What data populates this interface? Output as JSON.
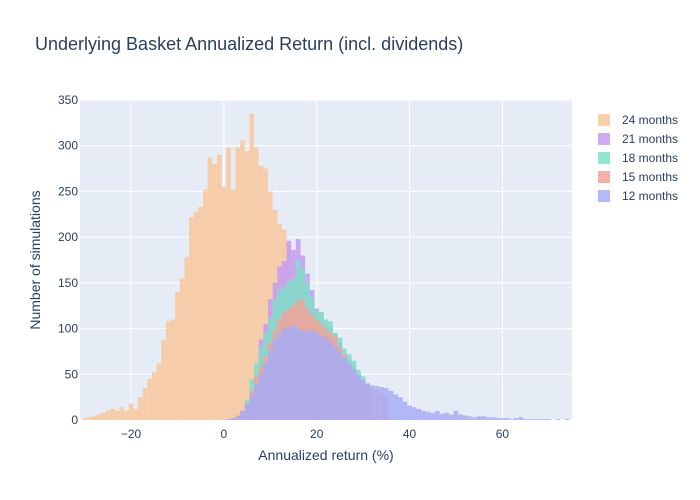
{
  "chart_data": {
    "type": "bar",
    "title": "Underlying Basket Annualized Return (incl. dividends)",
    "xlabel": "Annualized return (%)",
    "ylabel": "Number of simulations",
    "xlim": [
      -31,
      75
    ],
    "ylim": [
      0,
      350
    ],
    "x_ticks": [
      -20,
      0,
      20,
      40,
      60
    ],
    "y_ticks": [
      0,
      50,
      100,
      150,
      200,
      250,
      300,
      350
    ],
    "grid": true,
    "legend_position": "right",
    "overlay": true,
    "series": [
      {
        "name": "24 months",
        "color": "#f9c89b",
        "bin_width": 1,
        "x": [
          -30,
          -29,
          -28,
          -27,
          -26,
          -25,
          -24,
          -23,
          -22,
          -21,
          -20,
          -19,
          -18,
          -17,
          -16,
          -15,
          -14,
          -13,
          -12,
          -11,
          -10,
          -9,
          -8,
          -7,
          -6,
          -5,
          -4,
          -3,
          -2,
          -1,
          0,
          1,
          2,
          3,
          4,
          5,
          6,
          7,
          8,
          9,
          10,
          11,
          12,
          13,
          14,
          15,
          16,
          17,
          18,
          19,
          20,
          21,
          22,
          23,
          24,
          25,
          26,
          27,
          28,
          29,
          30,
          31,
          32,
          33,
          34,
          35,
          36,
          37,
          38,
          39,
          40
        ],
        "values": [
          2,
          3,
          4,
          6,
          8,
          10,
          12,
          10,
          14,
          10,
          18,
          12,
          25,
          35,
          45,
          52,
          62,
          88,
          108,
          110,
          140,
          155,
          178,
          222,
          228,
          233,
          252,
          287,
          280,
          290,
          255,
          298,
          252,
          298,
          306,
          294,
          335,
          298,
          278,
          275,
          250,
          230,
          215,
          208,
          192,
          175,
          165,
          140,
          120,
          100,
          80,
          58,
          40,
          28,
          22,
          15,
          12,
          9,
          6,
          5,
          4,
          3,
          2,
          2,
          1,
          1,
          1,
          0,
          0,
          0,
          0
        ]
      },
      {
        "name": "21 months",
        "color": "#c49cf5",
        "bin_width": 1,
        "x": [
          5,
          6,
          7,
          8,
          9,
          10,
          11,
          12,
          13,
          14,
          15,
          16,
          17,
          18,
          19,
          20,
          21,
          22,
          23,
          24,
          25,
          26,
          27,
          28,
          29,
          30
        ],
        "values": [
          5,
          15,
          35,
          88,
          105,
          132,
          150,
          168,
          174,
          196,
          186,
          198,
          180,
          160,
          142,
          122,
          118,
          108,
          102,
          95,
          85,
          70,
          66,
          60,
          50,
          42
        ]
      },
      {
        "name": "18 months",
        "color": "#7fe0c8",
        "bin_width": 1,
        "x": [
          3,
          4,
          5,
          6,
          7,
          8,
          9,
          10,
          11,
          12,
          13,
          14,
          15,
          16,
          17,
          18,
          19,
          20,
          21,
          22,
          23,
          24,
          25,
          26,
          27,
          28,
          29,
          30,
          31
        ],
        "values": [
          3,
          8,
          22,
          45,
          62,
          80,
          95,
          112,
          132,
          142,
          146,
          152,
          155,
          175,
          165,
          150,
          135,
          120,
          118,
          110,
          108,
          95,
          90,
          78,
          72,
          65,
          55,
          48,
          40
        ]
      },
      {
        "name": "15 months",
        "color": "#f5a398",
        "bin_width": 1,
        "x": [
          2,
          3,
          4,
          5,
          6,
          7,
          8,
          9,
          10,
          11,
          12,
          13,
          14,
          15,
          16,
          17,
          18,
          19,
          20,
          21,
          22,
          23,
          24,
          25,
          26,
          27,
          28,
          29,
          30,
          31,
          32,
          33,
          34,
          35
        ],
        "values": [
          2,
          5,
          10,
          18,
          32,
          48,
          58,
          70,
          85,
          98,
          110,
          118,
          122,
          126,
          130,
          132,
          122,
          115,
          110,
          105,
          100,
          95,
          92,
          80,
          72,
          62,
          55,
          48,
          40,
          38,
          35,
          32,
          28,
          25
        ]
      },
      {
        "name": "12 months",
        "color": "#a7adf9",
        "bin_width": 1,
        "x": [
          1,
          2,
          3,
          4,
          5,
          6,
          7,
          8,
          9,
          10,
          11,
          12,
          13,
          14,
          15,
          16,
          17,
          18,
          19,
          20,
          21,
          22,
          23,
          24,
          25,
          26,
          27,
          28,
          29,
          30,
          31,
          32,
          33,
          34,
          35,
          36,
          37,
          38,
          39,
          40,
          41,
          42,
          43,
          44,
          45,
          46,
          47,
          48,
          49,
          50,
          51,
          52,
          53,
          54,
          55,
          56,
          57,
          58,
          59,
          60,
          61,
          62,
          63,
          64,
          65,
          66,
          67,
          68,
          69,
          70,
          71,
          72,
          73,
          74
        ],
        "values": [
          1,
          2,
          4,
          10,
          18,
          28,
          40,
          50,
          62,
          76,
          88,
          95,
          100,
          102,
          104,
          100,
          98,
          97,
          98,
          96,
          92,
          90,
          86,
          80,
          75,
          68,
          62,
          56,
          50,
          44,
          40,
          38,
          37,
          36,
          35,
          32,
          28,
          25,
          20,
          16,
          14,
          12,
          10,
          9,
          8,
          10,
          7,
          8,
          6,
          10,
          6,
          5,
          4,
          3,
          4,
          4,
          3,
          3,
          2,
          2,
          2,
          1,
          2,
          3,
          1,
          1,
          1,
          1,
          1,
          1,
          0,
          1,
          0,
          1
        ]
      }
    ],
    "legend_order": [
      "24 months",
      "21 months",
      "18 months",
      "15 months",
      "12 months"
    ]
  }
}
